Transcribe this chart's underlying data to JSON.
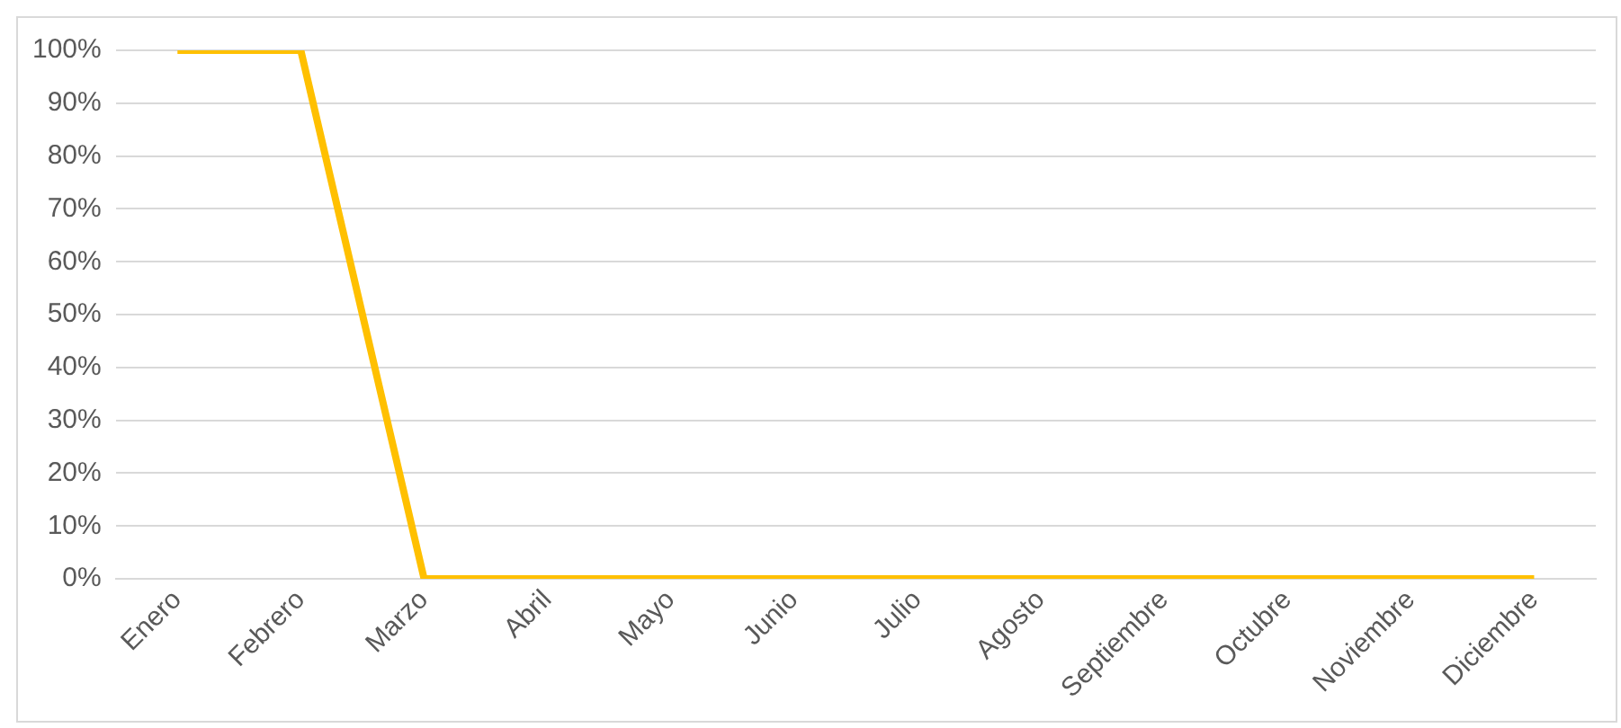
{
  "chart_data": {
    "type": "line",
    "categories": [
      "Enero",
      "Febrero",
      "Marzo",
      "Abril",
      "Mayo",
      "Junio",
      "Julio",
      "Agosto",
      "Septiembre",
      "Octubre",
      "Noviembre",
      "Diciembre"
    ],
    "series": [
      {
        "color": "#ffc000",
        "values": [
          100,
          100,
          0,
          0,
          0,
          0,
          0,
          0,
          0,
          0,
          0,
          0
        ]
      }
    ],
    "ylim": [
      0,
      100
    ],
    "yticks": [
      {
        "value": 0,
        "label": "0%"
      },
      {
        "value": 10,
        "label": "10%"
      },
      {
        "value": 20,
        "label": "20%"
      },
      {
        "value": 30,
        "label": "30%"
      },
      {
        "value": 40,
        "label": "40%"
      },
      {
        "value": 50,
        "label": "50%"
      },
      {
        "value": 60,
        "label": "60%"
      },
      {
        "value": 70,
        "label": "70%"
      },
      {
        "value": 80,
        "label": "80%"
      },
      {
        "value": 90,
        "label": "90%"
      },
      {
        "value": 100,
        "label": "100%"
      }
    ],
    "grid": "y",
    "legend": false,
    "marker": "none",
    "line_style": "solid"
  }
}
